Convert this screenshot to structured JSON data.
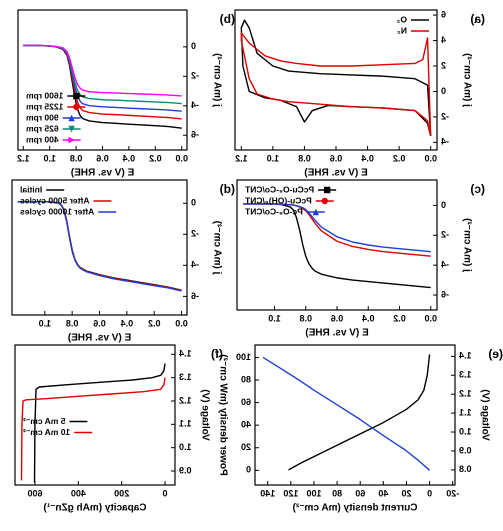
{
  "chart_data": [
    {
      "type": "line",
      "label": "(a)",
      "xlabel": "E (V vs. RHE)",
      "ylabel": "j (mA cm⁻²)",
      "xlim": [
        -0.04,
        1.24
      ],
      "xticks": [
        {
          "value": 0,
          "label": "0.0"
        },
        0.2,
        0.4,
        0.6,
        0.8,
        {
          "value": 1,
          "label": "1.0"
        },
        1.2
      ],
      "ylim": [
        -4.6,
        6.4
      ],
      "yticks": [
        -4,
        -2,
        0,
        2,
        4,
        6
      ],
      "legend": "upper left",
      "series": [
        {
          "name": "O₂",
          "color": "#000000",
          "x": [
            0.0,
            0.02,
            0.1,
            0.3,
            0.5,
            0.7,
            0.9,
            1.0,
            1.1,
            1.15,
            1.18,
            1.2,
            1.19,
            1.15,
            1.05,
            0.95,
            0.85,
            0.8,
            0.75,
            0.65,
            0.5,
            0.3,
            0.1,
            0.02,
            0.0
          ],
          "values": [
            -3.5,
            0.5,
            1.0,
            1.2,
            1.3,
            1.4,
            1.6,
            2.0,
            3.0,
            5.0,
            5.6,
            5.0,
            2.0,
            0.0,
            -0.5,
            -0.7,
            -1.2,
            -2.4,
            -1.5,
            -1.1,
            -1.2,
            -1.3,
            -1.5,
            -2.5,
            -3.5
          ]
        },
        {
          "name": "N₂",
          "color": "#e00000",
          "x": [
            0.0,
            0.02,
            0.05,
            0.1,
            0.3,
            0.5,
            0.7,
            0.85,
            0.95,
            1.05,
            1.15,
            1.2,
            1.2,
            1.15,
            1.1,
            1.0,
            0.9,
            0.7,
            0.5,
            0.3,
            0.1,
            0.02,
            0.0
          ],
          "values": [
            -3.5,
            4.2,
            2.5,
            2.2,
            2.1,
            2.0,
            2.0,
            2.2,
            2.4,
            2.8,
            3.8,
            4.6,
            4.0,
            1.0,
            -0.2,
            -0.6,
            -0.8,
            -1.0,
            -1.2,
            -1.3,
            -1.5,
            -2.3,
            -3.5
          ]
        }
      ]
    },
    {
      "type": "line",
      "label": "(b)",
      "xlabel": "E (V vs. RHE)",
      "ylabel": "j (mA cm⁻²)",
      "xlim": [
        -0.04,
        1.24
      ],
      "xticks": [
        {
          "value": 0,
          "label": "0.0"
        },
        0.2,
        0.4,
        0.6,
        0.8,
        {
          "value": 1,
          "label": "1.0"
        },
        1.2
      ],
      "ylim": [
        -7,
        2.5
      ],
      "yticks": [
        -6,
        -4,
        -2,
        0
      ],
      "legend": "lower right",
      "x": [
        1.2,
        1.1,
        1.0,
        0.95,
        0.9,
        0.87,
        0.85,
        0.83,
        0.81,
        0.79,
        0.77,
        0.75,
        0.7,
        0.6,
        0.5,
        0.4,
        0.3,
        0.2,
        0.1,
        0.0
      ],
      "series": [
        {
          "name": "1600 rpm",
          "color": "#000000",
          "marker": "square",
          "values": [
            0.1,
            0.1,
            0.05,
            -0.01,
            -0.17,
            -0.55,
            -1.25,
            -2.33,
            -3.41,
            -4.22,
            -4.65,
            -4.87,
            -5.03,
            -5.14,
            -5.19,
            -5.25,
            -5.3,
            -5.35,
            -5.41,
            -5.52
          ]
        },
        {
          "name": "1225 rpm",
          "color": "#e00000",
          "marker": "circle",
          "values": [
            0.1,
            0.1,
            0.05,
            0.0,
            -0.14,
            -0.48,
            -1.1,
            -2.06,
            -3.02,
            -3.74,
            -4.12,
            -4.32,
            -4.46,
            -4.56,
            -4.6,
            -4.65,
            -4.7,
            -4.75,
            -4.8,
            -4.89
          ]
        },
        {
          "name": "900 rpm",
          "color": "#1f3fd0",
          "marker": "triangle",
          "values": [
            0.1,
            0.1,
            0.06,
            0.01,
            -0.12,
            -0.42,
            -0.98,
            -1.84,
            -2.7,
            -3.34,
            -3.68,
            -3.86,
            -3.99,
            -4.07,
            -4.11,
            -4.16,
            -4.2,
            -4.24,
            -4.29,
            -4.37
          ]
        },
        {
          "name": "625 rpm",
          "color": "#0a8a7a",
          "marker": "triangle-down",
          "values": [
            0.1,
            0.1,
            0.06,
            0.02,
            -0.09,
            -0.36,
            -0.85,
            -1.61,
            -2.37,
            -2.94,
            -3.24,
            -3.4,
            -3.51,
            -3.59,
            -3.62,
            -3.66,
            -3.7,
            -3.74,
            -3.78,
            -3.85
          ]
        },
        {
          "name": "400 rpm",
          "color": "#ff00ff",
          "marker": "triangle-left",
          "values": [
            0.1,
            0.1,
            0.07,
            0.03,
            -0.07,
            -0.3,
            -0.73,
            -1.39,
            -2.05,
            -2.54,
            -2.8,
            -2.94,
            -3.04,
            -3.1,
            -3.13,
            -3.17,
            -3.2,
            -3.23,
            -3.27,
            -3.33
          ]
        }
      ]
    },
    {
      "type": "line",
      "label": "(c)",
      "xlabel": "E (V vs. RHE)",
      "ylabel": "j (mA cm⁻²)",
      "xlim": [
        -0.04,
        1.24
      ],
      "xticks": [
        {
          "value": 0,
          "label": "0.0"
        },
        0.2,
        0.4,
        0.6,
        0.8,
        {
          "value": 1,
          "label": "1.0"
        }
      ],
      "ylim": [
        -7,
        1.7
      ],
      "yticks": [
        -6,
        -4,
        -2,
        0
      ],
      "legend": "upper right",
      "x": [
        1.2,
        1.0,
        0.95,
        0.9,
        0.88,
        0.86,
        0.84,
        0.82,
        0.8,
        0.78,
        0.76,
        0.74,
        0.7,
        0.6,
        0.5,
        0.4,
        0.3,
        0.2,
        0.1,
        0.0
      ],
      "series": [
        {
          "name": "PcCu-O₈-Co/CNT",
          "color": "#000000",
          "marker": "square",
          "values": [
            0.1,
            0.1,
            0.05,
            -0.1,
            -0.3,
            -0.8,
            -1.6,
            -2.6,
            -3.4,
            -3.9,
            -4.2,
            -4.4,
            -4.6,
            -4.85,
            -5.0,
            -5.1,
            -5.2,
            -5.3,
            -5.4,
            -5.5
          ]
        },
        {
          "name": "PcCu-(OH)₈/CNT",
          "color": "#e00000",
          "marker": "circle",
          "values": [
            0.1,
            0.1,
            0.08,
            0.05,
            0.02,
            -0.03,
            -0.1,
            -0.2,
            -0.35,
            -0.6,
            -0.9,
            -1.2,
            -1.7,
            -2.4,
            -2.75,
            -2.95,
            -3.1,
            -3.2,
            -3.3,
            -3.4
          ]
        },
        {
          "name": "Pc-O₈-Co/CNT",
          "color": "#1f3fd0",
          "marker": "triangle",
          "values": [
            0.1,
            0.1,
            0.08,
            0.05,
            0.02,
            -0.02,
            -0.08,
            -0.15,
            -0.28,
            -0.5,
            -0.75,
            -1.0,
            -1.45,
            -2.1,
            -2.45,
            -2.65,
            -2.8,
            -2.9,
            -3.0,
            -3.1
          ]
        }
      ]
    },
    {
      "type": "line",
      "label": "(d)",
      "xlabel": "E (V vs. RHE)",
      "ylabel": "j (mA cm⁻²)",
      "xlim": [
        -0.04,
        1.24
      ],
      "xticks": [
        {
          "value": 0,
          "label": "0.0"
        },
        0.2,
        0.4,
        0.6,
        0.8,
        {
          "value": 1,
          "label": "1.0"
        }
      ],
      "ylim": [
        -7.2,
        1.5
      ],
      "yticks": [
        -6,
        -4,
        -2,
        0
      ],
      "legend": "upper right",
      "x": [
        1.2,
        1.0,
        0.95,
        0.9,
        0.88,
        0.86,
        0.84,
        0.82,
        0.8,
        0.78,
        0.76,
        0.74,
        0.7,
        0.6,
        0.5,
        0.4,
        0.3,
        0.2,
        0.1,
        0.0
      ],
      "series": [
        {
          "name": "Initial",
          "color": "#000000",
          "values": [
            0.1,
            0.1,
            0.08,
            0.02,
            -0.1,
            -0.4,
            -1.1,
            -2.1,
            -3.0,
            -3.6,
            -3.95,
            -4.15,
            -4.35,
            -4.6,
            -4.8,
            -4.95,
            -5.1,
            -5.25,
            -5.4,
            -5.6
          ]
        },
        {
          "name": "After 5000 cycles",
          "color": "#e00000",
          "values": [
            0.1,
            0.1,
            0.08,
            0.02,
            -0.11,
            -0.43,
            -1.15,
            -2.15,
            -3.05,
            -3.62,
            -3.97,
            -4.17,
            -4.37,
            -4.63,
            -4.83,
            -4.98,
            -5.13,
            -5.28,
            -5.42,
            -5.62
          ]
        },
        {
          "name": "After 10000 cycles",
          "color": "#1f3fd0",
          "values": [
            0.1,
            0.1,
            0.07,
            0.01,
            -0.13,
            -0.46,
            -1.2,
            -2.2,
            -3.1,
            -3.66,
            -4.0,
            -4.2,
            -4.4,
            -4.66,
            -4.86,
            -5.01,
            -5.16,
            -5.31,
            -5.45,
            -5.65
          ]
        }
      ]
    },
    {
      "type": "line",
      "label": "(e)",
      "xlabel": "Current density (mA cm⁻²)",
      "ylabel": "Voltage (V)",
      "y2label": "Power density (mW cm⁻²)",
      "xlim": [
        -22,
        151
      ],
      "xticks": [
        -20,
        0,
        20,
        40,
        60,
        80,
        100,
        120,
        140
      ],
      "ylim": [
        0.72,
        1.46
      ],
      "yticks": [
        0.8,
        0.9,
        {
          "value": 1,
          "label": "1.0"
        },
        1.1,
        1.2,
        1.3,
        1.4
      ],
      "y2lim": [
        -13,
        111
      ],
      "y2ticks": [
        0,
        20,
        40,
        60,
        80,
        100
      ],
      "series": [
        {
          "color": "#000000",
          "x": [
            122,
            110,
            100,
            80,
            60,
            40,
            20,
            10,
            5,
            2,
            0
          ],
          "values": [
            0.8,
            0.84,
            0.87,
            0.93,
            0.99,
            1.05,
            1.12,
            1.17,
            1.22,
            1.3,
            1.41
          ]
        },
        {
          "color": "#1f3fd0",
          "axis": "y2",
          "x": [
            144,
            130,
            113,
            100,
            80,
            60,
            46,
            30,
            21,
            10,
            0
          ],
          "values": [
            100,
            91,
            80,
            71,
            58,
            45,
            35,
            24,
            18,
            9,
            0
          ]
        }
      ]
    },
    {
      "type": "line",
      "label": "(f)",
      "xlabel": "Capacity (mAh gZn⁻¹)",
      "ylabel": "Voltage (V)",
      "xlim": [
        -46,
        692
      ],
      "xticks": [
        0,
        200,
        400,
        600
      ],
      "ylim": [
        0.84,
        1.44
      ],
      "yticks": [
        0.9,
        {
          "value": 1,
          "label": "1.0"
        },
        1.1,
        1.2,
        1.3,
        1.4
      ],
      "legend": "center right",
      "series": [
        {
          "name": "5 mA cm⁻²",
          "color": "#000000",
          "x": [
            0,
            5,
            20,
            60,
            150,
            300,
            450,
            580,
            595,
            600,
            602
          ],
          "values": [
            1.36,
            1.33,
            1.31,
            1.3,
            1.29,
            1.28,
            1.27,
            1.26,
            1.25,
            1.1,
            0.85
          ]
        },
        {
          "name": "10 mA cm⁻²",
          "color": "#e00000",
          "x": [
            0,
            5,
            20,
            100,
            250,
            400,
            550,
            640,
            655,
            660,
            662
          ],
          "values": [
            1.3,
            1.27,
            1.25,
            1.24,
            1.23,
            1.22,
            1.21,
            1.205,
            1.2,
            1.1,
            0.86
          ]
        }
      ]
    }
  ]
}
